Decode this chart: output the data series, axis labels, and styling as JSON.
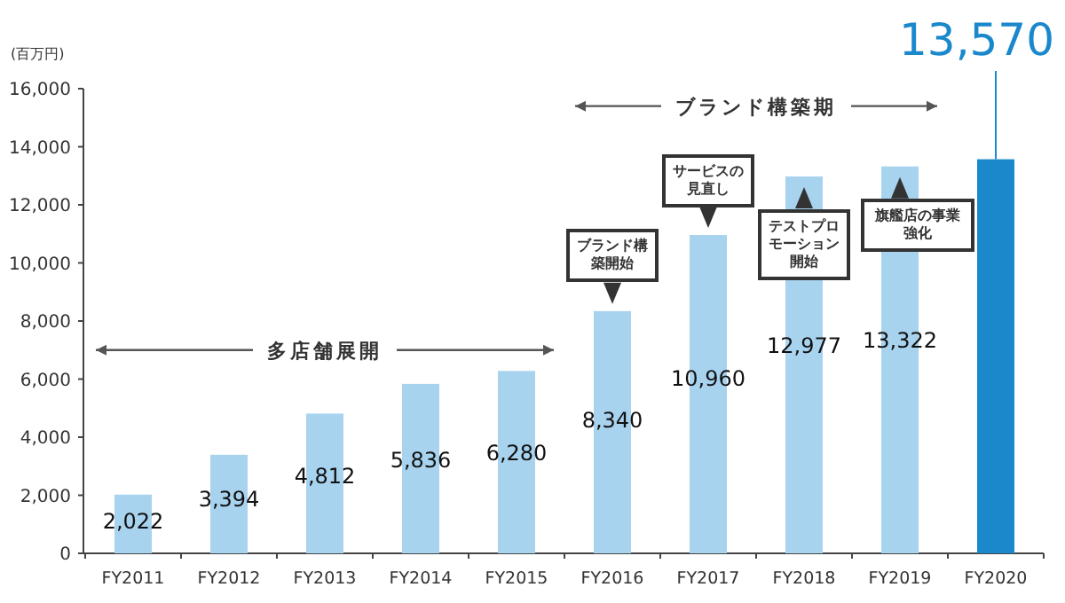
{
  "chart_data": {
    "type": "bar",
    "ylabel": "(百万円)",
    "categories": [
      "FY2011",
      "FY2012",
      "FY2013",
      "FY2014",
      "FY2015",
      "FY2016",
      "FY2017",
      "FY2018",
      "FY2019",
      "FY2020"
    ],
    "values": [
      2022,
      3394,
      4812,
      5836,
      6280,
      8340,
      10960,
      12977,
      13322,
      13570
    ],
    "colors": [
      "#a8d3ef",
      "#a8d3ef",
      "#a8d3ef",
      "#a8d3ef",
      "#a8d3ef",
      "#a8d3ef",
      "#a8d3ef",
      "#a8d3ef",
      "#a8d3ef",
      "#1a88cb"
    ],
    "value_labels": [
      "2,022",
      "3,394",
      "4,812",
      "5,836",
      "6,280",
      "8,340",
      "10,960",
      "12,977",
      "13,322",
      "13,570"
    ],
    "ylim": [
      0,
      16000
    ],
    "yticks": [
      {
        "value": 0,
        "label": "0"
      },
      {
        "value": 2000,
        "label": "2,000"
      },
      {
        "value": 4000,
        "label": "4,000"
      },
      {
        "value": 6000,
        "label": "6,000"
      },
      {
        "value": 8000,
        "label": "8,000"
      },
      {
        "value": 10000,
        "label": "10,000"
      },
      {
        "value": 12000,
        "label": "12,000"
      },
      {
        "value": 14000,
        "label": "14,000"
      },
      {
        "value": 16000,
        "label": "16,000"
      }
    ],
    "annotations": [
      "多店舗展開",
      "ブランド構築期",
      {
        "text": "ブランド構築開始",
        "x": "FY2016",
        "y": 8340
      },
      {
        "text": "サービスの見直し",
        "x": "FY2017",
        "y": 10960
      },
      {
        "text": "テストプロモーション開始",
        "x": "FY2018",
        "y": 12977
      },
      {
        "text": "旗艦店の事業強化",
        "x": "FY2019",
        "y": 13322
      }
    ]
  }
}
